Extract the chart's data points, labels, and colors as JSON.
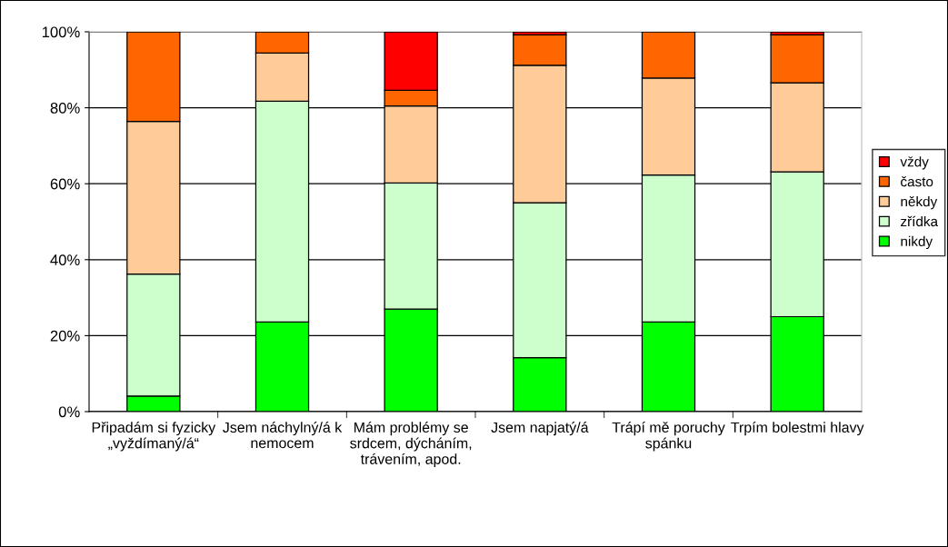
{
  "chart_data": {
    "type": "bar",
    "stacked": true,
    "categories": [
      "Připadám si fyzicky „vyždímaný/á“",
      "Jsem náchylný/á k nemocem",
      "Mám problémy se srdcem, dýcháním, trávením, apod.",
      "Jsem napjatý/á",
      "Trápí mě poruchy spánku",
      "Trpím bolestmi hlavy"
    ],
    "series": [
      {
        "name": "nikdy",
        "color": "#00ff00",
        "values": [
          4.1,
          23.6,
          27.0,
          14.2,
          23.6,
          25.0
        ]
      },
      {
        "name": "zřídka",
        "color": "#ccffcc",
        "values": [
          32.1,
          58.1,
          33.2,
          40.8,
          38.7,
          38.1
        ]
      },
      {
        "name": "někdy",
        "color": "#ffcc99",
        "values": [
          40.2,
          12.7,
          20.3,
          36.2,
          25.5,
          23.5
        ]
      },
      {
        "name": "často",
        "color": "#ff6600",
        "values": [
          23.6,
          5.6,
          4.1,
          8.0,
          12.2,
          12.6
        ]
      },
      {
        "name": "vždy",
        "color": "#ff0000",
        "values": [
          null,
          null,
          15.4,
          0.8,
          null,
          0.8
        ]
      }
    ],
    "ylim": [
      0,
      100
    ],
    "yticks": [
      {
        "value": 0,
        "label": "0%"
      },
      {
        "value": 20,
        "label": "20%"
      },
      {
        "value": 40,
        "label": "40%"
      },
      {
        "value": 60,
        "label": "60%"
      },
      {
        "value": 80,
        "label": "80%"
      },
      {
        "value": 100,
        "label": "100%"
      }
    ],
    "grid": "y",
    "legend": "right"
  }
}
